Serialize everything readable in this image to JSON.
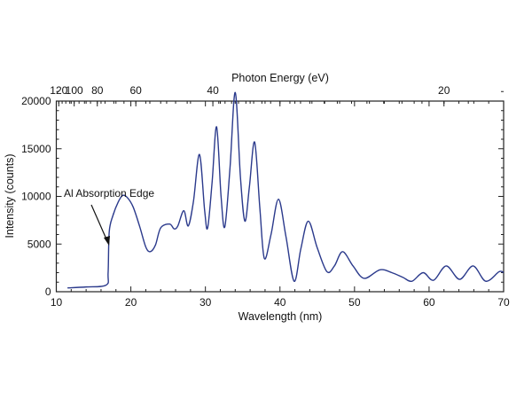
{
  "chart_data": {
    "type": "line",
    "title": "",
    "xlabel": "Wavelength (nm)",
    "ylabel": "Intensity (counts)",
    "top_xlabel": "Photon Energy (eV)",
    "xlim": [
      10,
      70
    ],
    "ylim": [
      0,
      20000
    ],
    "x_ticks": [
      "10",
      "20",
      "30",
      "40",
      "50",
      "60",
      "70"
    ],
    "x_tick_values": [
      10,
      20,
      30,
      40,
      50,
      60,
      70
    ],
    "y_ticks": [
      "0",
      "5000",
      "10000",
      "15000",
      "20000"
    ],
    "y_tick_values": [
      0,
      5000,
      10000,
      15000,
      20000
    ],
    "top_ticks": [
      "120",
      "100",
      "80",
      "60",
      "40",
      "20"
    ],
    "top_tick_values": [
      120,
      100,
      80,
      60,
      40,
      20
    ],
    "grid": false,
    "line_color": "#2b3a8c",
    "annotation": {
      "text": "Al Absorption Edge",
      "points_to_x": 17,
      "points_to_y": 5300
    },
    "series": [
      {
        "name": "Intensity",
        "x": [
          11.5,
          14,
          16.7,
          16.95,
          17.1,
          17.6,
          18.3,
          18.9,
          19.5,
          20.3,
          21.2,
          22.0,
          22.6,
          23.3,
          24.0,
          25.2,
          25.8,
          26.3,
          27.1,
          27.7,
          28.4,
          29.2,
          29.9,
          30.3,
          30.9,
          31.5,
          32.1,
          32.6,
          33.3,
          34.0,
          34.7,
          35.3,
          35.9,
          36.6,
          37.3,
          37.9,
          38.8,
          39.8,
          40.8,
          41.9,
          42.8,
          43.8,
          45.0,
          46.3,
          47.3,
          48.4,
          49.8,
          51.3,
          53.4,
          55.0,
          56.5,
          57.7,
          59.2,
          60.6,
          62.3,
          64.1,
          65.9,
          67.6,
          69.4,
          70.0
        ],
        "y": [
          400,
          500,
          700,
          2000,
          6300,
          8000,
          9400,
          10100,
          9900,
          8900,
          6800,
          4700,
          4200,
          4900,
          6700,
          7100,
          6600,
          6900,
          8500,
          6900,
          9500,
          14400,
          8500,
          6700,
          11500,
          17300,
          10000,
          6800,
          13000,
          20900,
          12000,
          7400,
          11000,
          15700,
          8800,
          3500,
          6000,
          9700,
          5800,
          1100,
          4500,
          7400,
          4600,
          2100,
          2700,
          4200,
          2700,
          1400,
          2300,
          2000,
          1500,
          1100,
          2000,
          1200,
          2700,
          1300,
          2700,
          1100,
          2100,
          2000
        ]
      }
    ]
  }
}
